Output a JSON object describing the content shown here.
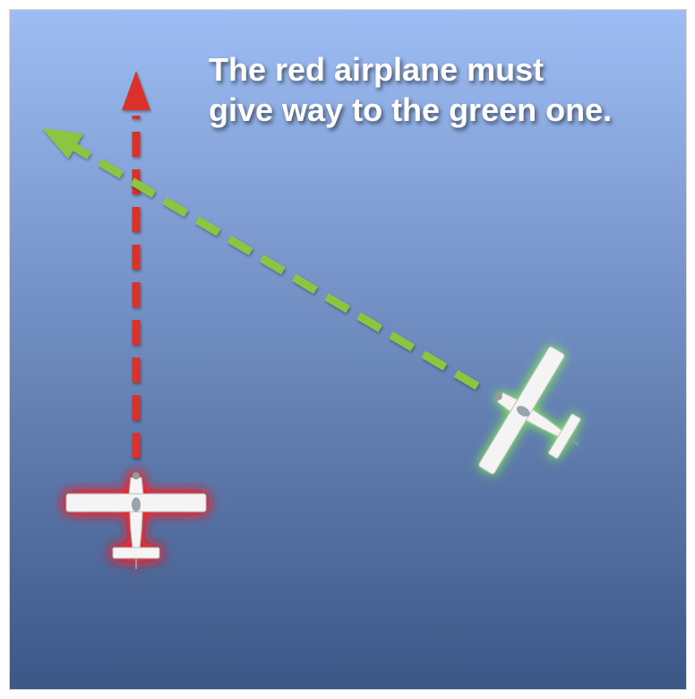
{
  "caption": {
    "line1": "The red airplane must",
    "line2": "give way to the green one."
  },
  "colors": {
    "sky_top": "#9dbdf4",
    "sky_bottom": "#3c5686",
    "red_path": "#d9302b",
    "green_path": "#8cc63f",
    "red_glow": "#ff2020",
    "green_glow": "#7fff3a",
    "airplane": "#f4f4f4"
  },
  "icons": {
    "red_airplane": "airplane-icon",
    "green_airplane": "airplane-icon",
    "red_arrowhead": "arrowhead-icon",
    "green_arrowhead": "arrowhead-icon"
  }
}
